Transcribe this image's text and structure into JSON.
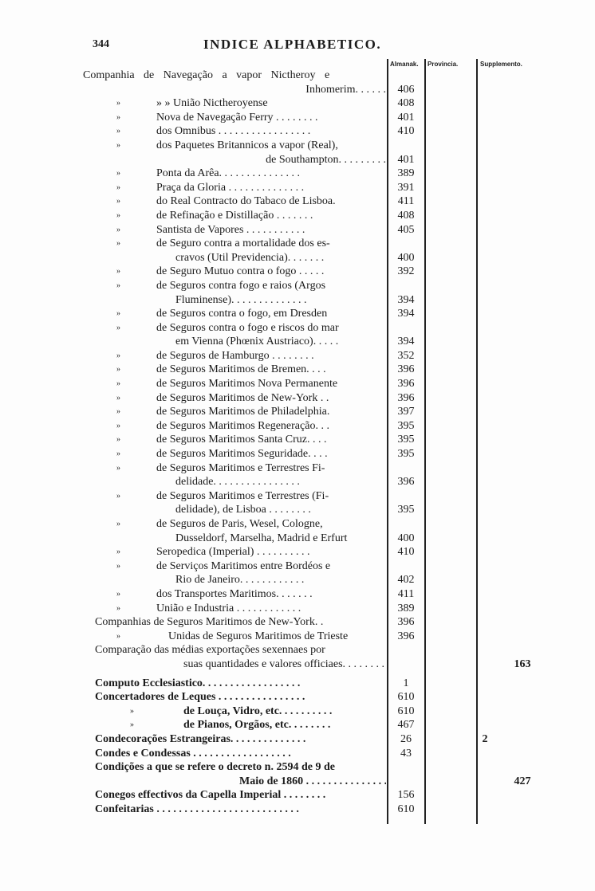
{
  "header": {
    "page_number": "344",
    "title": "INDICE ALPHABETICO."
  },
  "columns": {
    "almanak": "Almanak.",
    "provincia": "Provincia.",
    "supplemento": "Supplemento."
  },
  "rows": [
    {
      "m": "",
      "t": "Companhia de Navegação a vapor Nictheroy e",
      "lvl": 0
    },
    {
      "m": "",
      "t": "Inhomerim. . . . . .",
      "lvl": "r",
      "a": "406"
    },
    {
      "m": "»",
      "t": "»           » União Nictheroyense",
      "lvl": 1,
      "a": "408"
    },
    {
      "m": "»",
      "t": "Nova de Navegação Ferry . . . . . . . .",
      "lvl": 1,
      "a": "401"
    },
    {
      "m": "»",
      "t": "dos Omnibus . . . . . . . . . . . . . . . . .",
      "lvl": 1,
      "a": "410"
    },
    {
      "m": "»",
      "t": "dos Paquetes Britannicos a vapor (Real),",
      "lvl": 1
    },
    {
      "m": "",
      "t": "de Southampton. . . . . . . . .",
      "lvl": "r",
      "a": "401"
    },
    {
      "m": "»",
      "t": "Ponta da Arêa. . . . . . . . . . . . . . .",
      "lvl": 1,
      "a": "389"
    },
    {
      "m": "»",
      "t": "Praça da Gloria . . . . . . . . . . . . . .",
      "lvl": 1,
      "a": "391"
    },
    {
      "m": "»",
      "t": "do Real Contracto do Tabaco de Lisboa.",
      "lvl": 1,
      "a": "411"
    },
    {
      "m": "»",
      "t": "de Refinação e Distillação . . . . . . .",
      "lvl": 1,
      "a": "408"
    },
    {
      "m": "»",
      "t": "Santista de Vapores . . . . . . . . . . .",
      "lvl": 1,
      "a": "405"
    },
    {
      "m": "»",
      "t": "de Seguro contra a mortalidade dos es-",
      "lvl": 1
    },
    {
      "m": "",
      "t": "cravos (Util Previdencia). . . . . . .",
      "lvl": 2,
      "a": "400"
    },
    {
      "m": "»",
      "t": "de Seguro Mutuo contra o fogo . . . . .",
      "lvl": 1,
      "a": "392"
    },
    {
      "m": "»",
      "t": "de Seguros contra fogo e raios (Argos",
      "lvl": 1
    },
    {
      "m": "",
      "t": "Fluminense). . . . . . . . . . . . . .",
      "lvl": 2,
      "a": "394"
    },
    {
      "m": "»",
      "t": "de Seguros contra o fogo, em Dresden",
      "lvl": 1,
      "a": "394"
    },
    {
      "m": "»",
      "t": "de Seguros contra o fogo e riscos do mar",
      "lvl": 1
    },
    {
      "m": "",
      "t": "em Vienna (Phœnix Austriaco). . . . .",
      "lvl": 2,
      "a": "394"
    },
    {
      "m": "»",
      "t": "de Seguros de Hamburgo . . . . . . . .",
      "lvl": 1,
      "a": "352"
    },
    {
      "m": "»",
      "t": "de Seguros Maritimos de Bremen. . . .",
      "lvl": 1,
      "a": "396"
    },
    {
      "m": "»",
      "t": "de Seguros Maritimos Nova Permanente",
      "lvl": 1,
      "a": "396"
    },
    {
      "m": "»",
      "t": "de Seguros Maritimos de New-York . .",
      "lvl": 1,
      "a": "396"
    },
    {
      "m": "»",
      "t": "de Seguros Maritimos de Philadelphia.",
      "lvl": 1,
      "a": "397"
    },
    {
      "m": "»",
      "t": "de Seguros Maritimos Regeneração. . .",
      "lvl": 1,
      "a": "395"
    },
    {
      "m": "»",
      "t": "de Seguros Maritimos Santa Cruz. . . .",
      "lvl": 1,
      "a": "395"
    },
    {
      "m": "»",
      "t": "de Seguros Maritimos Seguridade. . . .",
      "lvl": 1,
      "a": "395"
    },
    {
      "m": "»",
      "t": "de Seguros Maritimos e Terrestres Fi-",
      "lvl": 1
    },
    {
      "m": "",
      "t": "delidade. . . . . . . . . . . . . . . .",
      "lvl": 2,
      "a": "396"
    },
    {
      "m": "»",
      "t": "de Seguros Maritimos e Terrestres (Fi-",
      "lvl": 1
    },
    {
      "m": "",
      "t": "delidade), de Lisboa . . . . . . . .",
      "lvl": 2,
      "a": "395"
    },
    {
      "m": "»",
      "t": "de Seguros de Paris, Wesel, Cologne,",
      "lvl": 1
    },
    {
      "m": "",
      "t": "Dusseldorf, Marselha, Madrid e Erfurt",
      "lvl": 2,
      "a": "400"
    },
    {
      "m": "»",
      "t": "Seropedica (Imperial) . . . . . . . . . .",
      "lvl": 1,
      "a": "410"
    },
    {
      "m": "»",
      "t": "de Serviços Maritimos entre Bordéos e",
      "lvl": 1
    },
    {
      "m": "",
      "t": "Rio de Janeiro. . . . . . . . . . . .",
      "lvl": 2,
      "a": "402"
    },
    {
      "m": "»",
      "t": "dos Transportes Maritimos. . . . . . .",
      "lvl": 1,
      "a": "411"
    },
    {
      "m": "»",
      "t": "União e Industria . . . . . . . . . . . .",
      "lvl": 1,
      "a": "389"
    },
    {
      "m": "",
      "t": "Companhias de Seguros Maritimos de New-York. .",
      "lvl": 3,
      "a": "396"
    },
    {
      "m": "»",
      "t": "Unidas de Seguros Maritimos de Trieste",
      "lvl": 4,
      "a": "396"
    },
    {
      "m": "",
      "t": "Comparação das médias exportações sexennaes por",
      "lvl": 3
    },
    {
      "m": "",
      "t": "suas quantidades e valores officiaes. . . . . . . . . .",
      "lvl": 5,
      "s": "163"
    },
    {
      "m": "",
      "t": "Computo Ecclesiastico. . . . . . . . . . . . . . . . . .",
      "lvl": 3,
      "a": "1",
      "b": 1,
      "gap": 1
    },
    {
      "m": "",
      "t": "Concertadores de Leques . . . . . . . . . . . . . . . .",
      "lvl": 3,
      "a": "610",
      "b": 1
    },
    {
      "m": "»",
      "t": "de Louça, Vidro, etc. . . . . . . . . .",
      "lvl": 6,
      "a": "610",
      "b": 1
    },
    {
      "m": "»",
      "t": "de Pianos, Orgãos, etc. . . . . . . .",
      "lvl": 6,
      "a": "467",
      "b": 1
    },
    {
      "m": "",
      "t": "Condecorações Estrangeiras. . . . . . . . . . . . . .",
      "lvl": 3,
      "a": "26",
      "p": "2",
      "b": 1
    },
    {
      "m": "",
      "t": "Condes e Condessas . . . . . . . . . . . . . . . . . .",
      "lvl": 3,
      "a": "43",
      "b": 1
    },
    {
      "m": "",
      "t": "Condições a que se refere o decreto n. 2594 de 9 de",
      "lvl": 3,
      "b": 1
    },
    {
      "m": "",
      "t": "Maio de 1860 . . . . . . . . . . . . . . . . . . . . . . .",
      "lvl": 7,
      "s": "427",
      "b": 1
    },
    {
      "m": "",
      "t": "Conegos effectivos da Capella Imperial . . . . . . . .",
      "lvl": 3,
      "a": "156",
      "b": 1
    },
    {
      "m": "",
      "t": "Confeitarias . . . . . . . . . . . . . . . . . . . . . . . . . .",
      "lvl": 3,
      "a": "610",
      "b": 1
    }
  ]
}
